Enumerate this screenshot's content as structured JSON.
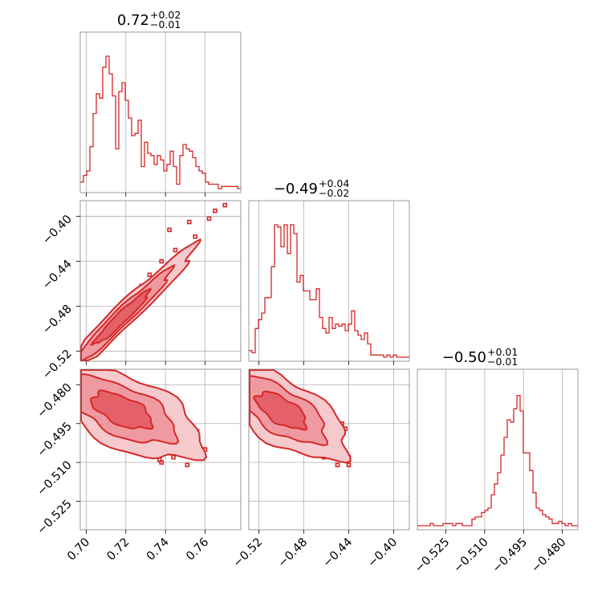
{
  "chart_data": {
    "type": "corner-plot",
    "grid": true,
    "color": "#d62728",
    "parameters": [
      {
        "title_main": "0.72",
        "title_plus": "+0.02",
        "title_minus": "−0.01",
        "range": [
          0.697,
          0.778
        ],
        "ticks": [
          0.7,
          0.72,
          0.74,
          0.76
        ],
        "tick_labels": [
          "0.70",
          "0.72",
          "0.74",
          "0.76"
        ],
        "hist_bin_edges_start": 0.697,
        "hist_bin_width": 0.00162,
        "hist_counts": [
          3,
          6,
          8,
          19,
          34,
          43,
          41,
          55,
          60,
          52,
          42,
          18,
          44,
          48,
          40,
          32,
          24,
          25,
          31,
          10,
          21,
          16,
          15,
          11,
          15,
          13,
          8,
          11,
          17,
          10,
          2,
          15,
          20,
          18,
          17,
          14,
          10,
          8,
          7,
          3,
          2,
          2,
          2,
          0,
          1,
          1,
          1,
          1,
          1,
          0
        ],
        "hist_ymax": 60
      },
      {
        "title_main": "−0.49",
        "title_plus": "+0.04",
        "title_minus": "−0.02",
        "range": [
          -0.529,
          -0.386
        ],
        "ticks": [
          -0.52,
          -0.48,
          -0.44,
          -0.4
        ],
        "tick_labels": [
          "−0.52",
          "−0.48",
          "−0.44",
          "−0.40"
        ],
        "hist_bin_edges_start": -0.529,
        "hist_bin_width": 0.00286,
        "hist_counts": [
          3,
          2,
          13,
          17,
          20,
          27,
          27,
          41,
          60,
          59,
          50,
          60,
          47,
          60,
          56,
          34,
          37,
          30,
          30,
          26,
          26,
          31,
          18,
          13,
          11,
          18,
          13,
          15,
          14,
          15,
          12,
          15,
          21,
          12,
          10,
          8,
          11,
          6,
          1,
          1,
          1,
          1,
          0,
          1,
          0,
          1,
          0,
          0,
          0,
          0
        ],
        "hist_ymax": 60
      },
      {
        "title_main": "−0.50",
        "title_plus": "+0.01",
        "title_minus": "−0.01",
        "range": [
          -0.536,
          -0.474
        ],
        "ticks": [
          -0.525,
          -0.51,
          -0.495,
          -0.48
        ],
        "tick_labels": [
          "−0.525",
          "−0.510",
          "−0.495",
          "−0.480"
        ],
        "hist_bin_edges_start": -0.536,
        "hist_bin_width": 0.00124,
        "hist_counts": [
          0,
          0,
          0,
          0,
          1,
          0,
          0,
          0,
          1,
          1,
          1,
          0,
          1,
          1,
          0,
          0,
          0,
          3,
          4,
          4,
          6,
          7,
          8,
          14,
          19,
          24,
          32,
          40,
          48,
          47,
          53,
          59,
          52,
          33,
          33,
          25,
          15,
          8,
          7,
          5,
          4,
          3,
          1,
          1,
          2,
          1,
          0,
          1,
          0,
          0
        ],
        "hist_ymax": 60
      }
    ],
    "pairs": [
      {
        "row": 1,
        "col": 0,
        "mean": [
          0.718,
          -0.49
        ],
        "std": [
          0.014,
          0.024
        ],
        "corr": 0.985,
        "outliers": [
          [
            0.752,
            -0.405
          ],
          [
            0.755,
            -0.418
          ],
          [
            0.762,
            -0.402
          ],
          [
            0.745,
            -0.43
          ],
          [
            0.738,
            -0.44
          ],
          [
            0.765,
            -0.395
          ],
          [
            0.77,
            -0.39
          ],
          [
            0.742,
            -0.412
          ],
          [
            0.728,
            -0.462
          ],
          [
            0.732,
            -0.452
          ]
        ],
        "level_scales": [
          0.55,
          1.0,
          1.5
        ]
      },
      {
        "row": 2,
        "col": 0,
        "mean": [
          0.718,
          -0.49
        ],
        "std": [
          0.015,
          0.007
        ],
        "corr": -0.65,
        "outliers": [
          [
            0.74,
            -0.503
          ],
          [
            0.745,
            -0.499
          ],
          [
            0.752,
            -0.5
          ],
          [
            0.756,
            -0.498
          ],
          [
            0.744,
            -0.508
          ],
          [
            0.738,
            -0.51
          ],
          [
            0.751,
            -0.511
          ],
          [
            0.733,
            -0.496
          ],
          [
            0.76,
            -0.505
          ],
          [
            0.737,
            -0.509
          ]
        ],
        "level_scales": [
          0.55,
          1.0,
          1.5
        ]
      },
      {
        "row": 2,
        "col": 1,
        "mean": [
          -0.5,
          -0.49
        ],
        "std": [
          0.022,
          0.007
        ],
        "corr": -0.7,
        "outliers": [
          [
            -0.455,
            -0.503
          ],
          [
            -0.448,
            -0.499
          ],
          [
            -0.443,
            -0.497
          ],
          [
            -0.452,
            -0.506
          ],
          [
            -0.44,
            -0.508
          ],
          [
            -0.462,
            -0.508
          ],
          [
            -0.446,
            -0.495
          ],
          [
            -0.44,
            -0.511
          ],
          [
            -0.466,
            -0.505
          ],
          [
            -0.45,
            -0.511
          ]
        ],
        "level_scales": [
          0.55,
          1.0,
          1.5
        ]
      }
    ]
  }
}
